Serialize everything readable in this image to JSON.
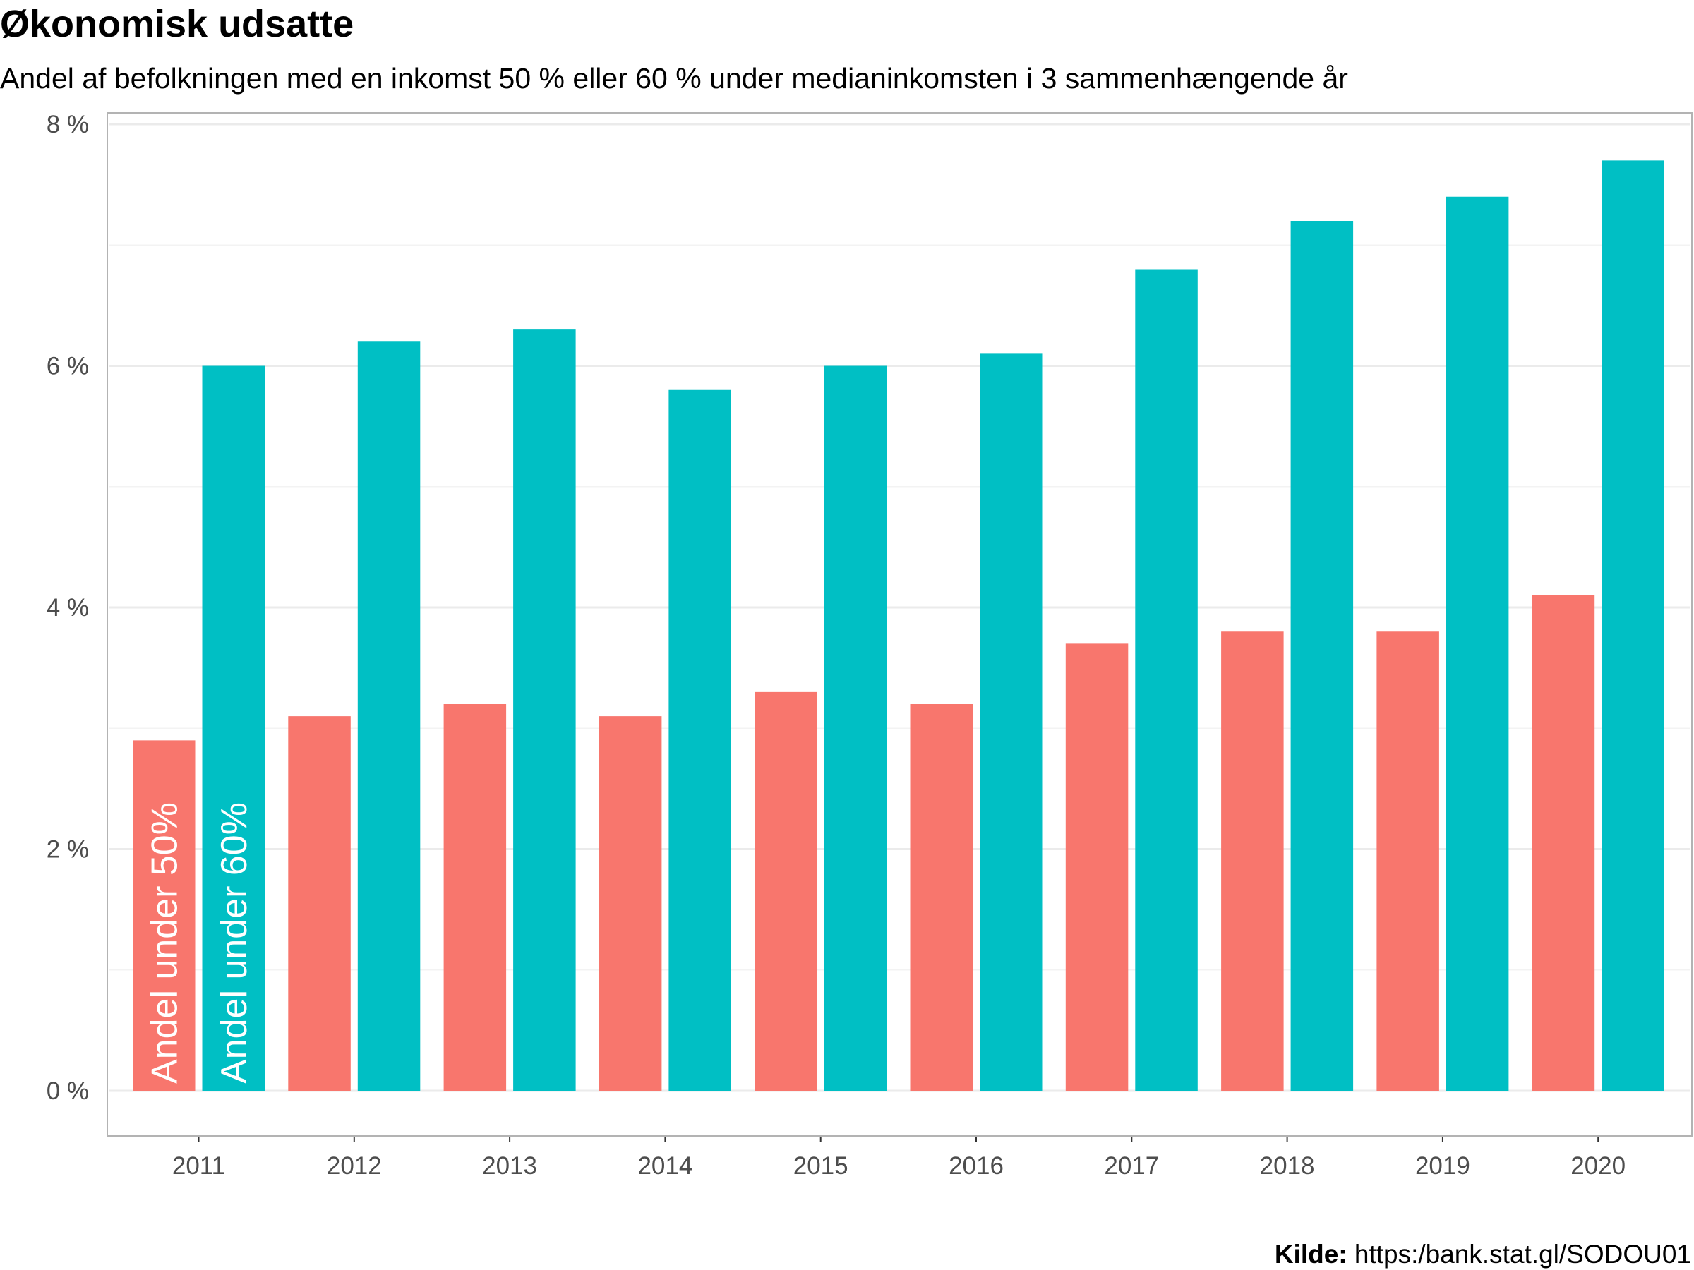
{
  "chart_data": {
    "type": "bar",
    "title": "Økonomisk udsatte",
    "subtitle": "Andel af befolkningen med en inkomst 50 % eller 60 % under medianinkomsten i 3 sammenhængende år",
    "categories": [
      "2011",
      "2012",
      "2013",
      "2014",
      "2015",
      "2016",
      "2017",
      "2018",
      "2019",
      "2020"
    ],
    "series": [
      {
        "name": "Andel under 50%",
        "color": "#F8766D",
        "values": [
          2.9,
          3.1,
          3.2,
          3.1,
          3.3,
          3.2,
          3.7,
          3.8,
          3.8,
          4.1
        ]
      },
      {
        "name": "Andel under 60%",
        "color": "#00BFC4",
        "values": [
          6.0,
          6.2,
          6.3,
          5.8,
          6.0,
          6.1,
          6.8,
          7.2,
          7.4,
          7.7
        ]
      }
    ],
    "ylim": [
      0,
      8
    ],
    "y_ticks": [
      "0 %",
      "2 %",
      "4 %",
      "6 %",
      "8 %"
    ],
    "y_tick_values": [
      0,
      2,
      4,
      6,
      8
    ],
    "grid": true,
    "legend": "inside-first-bars",
    "caption_label": "Kilde:",
    "caption_text": "https:/bank.stat.gl/SODOU01"
  }
}
